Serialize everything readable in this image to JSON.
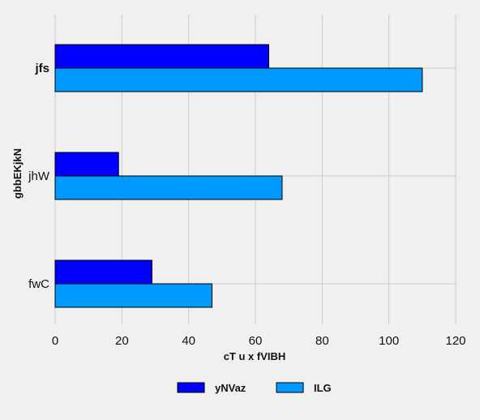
{
  "chart_data": {
    "type": "bar",
    "orientation": "horizontal",
    "categories": [
      "fwC",
      "jhW",
      "jfs"
    ],
    "series": [
      {
        "name": "yNVaz",
        "color": "#0000ff",
        "values": [
          29,
          19,
          64
        ]
      },
      {
        "name": "ILG",
        "color": "#0099ff",
        "values": [
          47,
          68,
          110
        ]
      }
    ],
    "xlabel": "cT u x   fVIBH",
    "ylabel": "gbbEKjkN",
    "xlim": [
      0,
      120
    ],
    "xticks": [
      0,
      20,
      40,
      60,
      80,
      100,
      120
    ],
    "grid": true,
    "legend_position": "bottom-center",
    "emphasized_category": "jfs"
  }
}
